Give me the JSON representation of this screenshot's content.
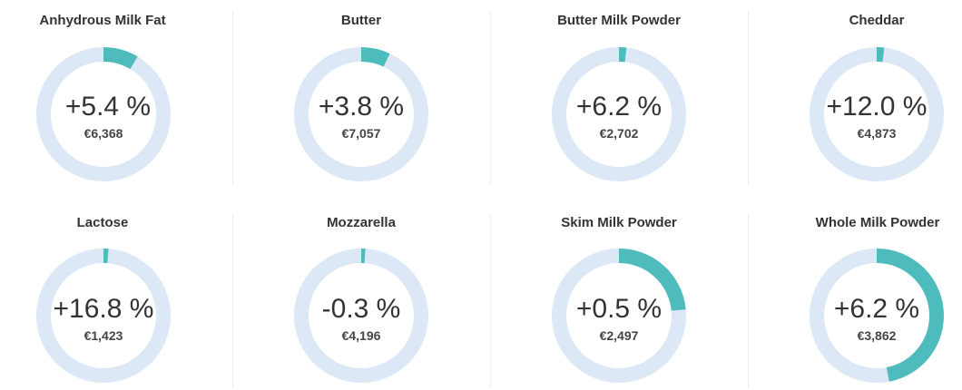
{
  "colors": {
    "track": "#dde8f6",
    "fill": "#4ebcbc"
  },
  "chart_data": [
    {
      "type": "gauge",
      "title": "Anhydrous Milk Fat",
      "percent_label": "+5.4 %",
      "price": "€6,368",
      "gauge_fraction": 0.085
    },
    {
      "type": "gauge",
      "title": "Butter",
      "percent_label": "+3.8 %",
      "price": "€7,057",
      "gauge_fraction": 0.07
    },
    {
      "type": "gauge",
      "title": "Butter Milk Powder",
      "percent_label": "+6.2 %",
      "price": "€2,702",
      "gauge_fraction": 0.018
    },
    {
      "type": "gauge",
      "title": "Cheddar",
      "percent_label": "+12.0 %",
      "price": "€4,873",
      "gauge_fraction": 0.018
    },
    {
      "type": "gauge",
      "title": "Lactose",
      "percent_label": "+16.8 %",
      "price": "€1,423",
      "gauge_fraction": 0.012
    },
    {
      "type": "gauge",
      "title": "Mozzarella",
      "percent_label": "-0.3 %",
      "price": "€4,196",
      "gauge_fraction": 0.01
    },
    {
      "type": "gauge",
      "title": "Skim Milk Powder",
      "percent_label": "+0.5 %",
      "price": "€2,497",
      "gauge_fraction": 0.235
    },
    {
      "type": "gauge",
      "title": "Whole Milk Powder",
      "percent_label": "+6.2 %",
      "price": "€3,862",
      "gauge_fraction": 0.47
    }
  ]
}
